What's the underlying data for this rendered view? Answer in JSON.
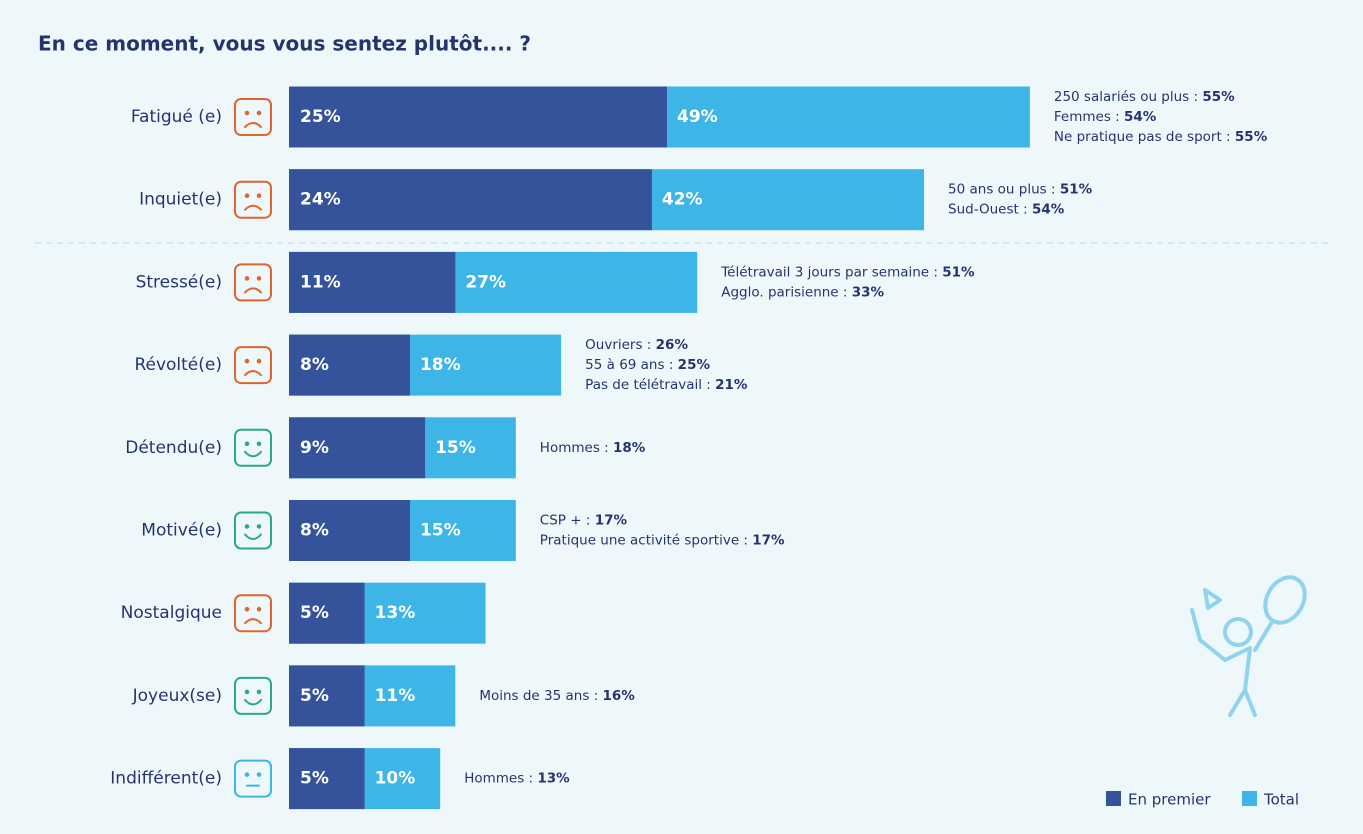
{
  "chart_data": {
    "type": "bar",
    "title": "En ce moment, vous vous sentez plutôt.... ?",
    "categories": [
      "Fatigué (e)",
      "Inquiet(e)",
      "Stressé(e)",
      "Révolté(e)",
      "Détendu(e)",
      "Motivé(e)",
      "Nostalgique",
      "Joyeux(se)",
      "Indifférent(e)"
    ],
    "series": [
      {
        "name": "Total",
        "color": "#3db5e6",
        "values": [
          49,
          42,
          27,
          18,
          15,
          15,
          13,
          11,
          10
        ],
        "value_labels": [
          "49%",
          "42%",
          "27%",
          "18%",
          "15%",
          "15%",
          "13%",
          "11%",
          "10%"
        ]
      },
      {
        "name": "En premier",
        "color": "#34539b",
        "values": [
          25,
          24,
          11,
          8,
          9,
          8,
          5,
          5,
          5
        ],
        "value_labels": [
          "25%",
          "24%",
          "11%",
          "8%",
          "9%",
          "8%",
          "5%",
          "5%",
          "5%"
        ]
      }
    ],
    "annotations": [
      [
        {
          "label": "250 salariés ou plus :",
          "value": "55%"
        },
        {
          "label": "Femmes :",
          "value": "54%"
        },
        {
          "label": "Ne pratique pas de sport :",
          "value": "55%"
        }
      ],
      [
        {
          "label": "50 ans ou plus :",
          "value": "51%"
        },
        {
          "label": "Sud-Ouest :",
          "value": "54%"
        }
      ],
      [
        {
          "label": "Télétravail 3 jours par semaine :",
          "value": "51%"
        },
        {
          "label": "Agglo. parisienne :",
          "value": "33%"
        }
      ],
      [
        {
          "label": "Ouvriers :",
          "value": "26%"
        },
        {
          "label": "55 à 69 ans :",
          "value": "25%"
        },
        {
          "label": "Pas de télétravail :",
          "value": "21%"
        }
      ],
      [
        {
          "label": "Hommes :",
          "value": "18%"
        }
      ],
      [
        {
          "label": "CSP + :",
          "value": "17%"
        },
        {
          "label": "Pratique une activité sportive :",
          "value": "17%"
        }
      ],
      [],
      [
        {
          "label": "Moins de 35 ans :",
          "value": "16%"
        }
      ],
      [
        {
          "label": "Hommes :",
          "value": "13%"
        }
      ]
    ],
    "legend_order": [
      1,
      0
    ]
  }
}
